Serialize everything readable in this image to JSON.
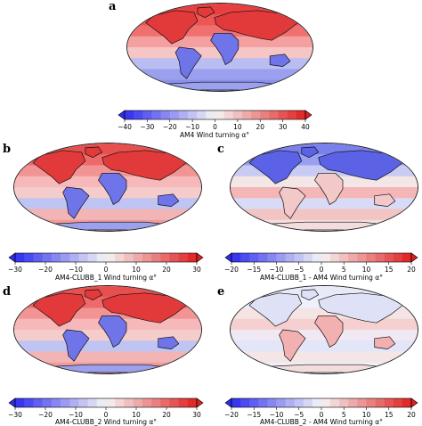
{
  "panels": [
    {
      "id": "a",
      "letter": "a",
      "style": "warm-strong",
      "colorbar": "cb_a"
    },
    {
      "id": "b",
      "letter": "b",
      "style": "warm-mid",
      "colorbar": "cb_b"
    },
    {
      "id": "c",
      "letter": "c",
      "style": "diff-cold-north",
      "colorbar": "cb_c"
    },
    {
      "id": "d",
      "letter": "d",
      "style": "warm-mid",
      "colorbar": "cb_d"
    },
    {
      "id": "e",
      "letter": "e",
      "style": "diff-neutral",
      "colorbar": "cb_e"
    }
  ],
  "colorbars": {
    "cb_a": {
      "ticks": [
        "−40",
        "−30",
        "−20",
        "−10",
        "0",
        "10",
        "20",
        "30",
        "40"
      ],
      "label": "AM4 Wind turning α°"
    },
    "cb_b": {
      "ticks": [
        "−30",
        "−20",
        "−10",
        "0",
        "10",
        "20",
        "30"
      ],
      "label": "AM4-CLUBB_1 Wind turning α°"
    },
    "cb_c": {
      "ticks": [
        "−20",
        "−15",
        "−10",
        "−5",
        "0",
        "5",
        "10",
        "15",
        "20"
      ],
      "label": "AM4-CLUBB_1 - AM4 Wind turning α°"
    },
    "cb_d": {
      "ticks": [
        "−30",
        "−20",
        "−10",
        "0",
        "10",
        "20",
        "30"
      ],
      "label": "AM4-CLUBB_2 Wind turning α°"
    },
    "cb_e": {
      "ticks": [
        "−20",
        "−15",
        "−10",
        "−5",
        "0",
        "5",
        "10",
        "15",
        "20"
      ],
      "label": "AM4-CLUBB_2 - AM4 Wind turning α°"
    }
  },
  "colors": {
    "neg": "#2d2df0",
    "mid": "#f5f5f5",
    "pos": "#e02020",
    "coast": "#111111"
  }
}
